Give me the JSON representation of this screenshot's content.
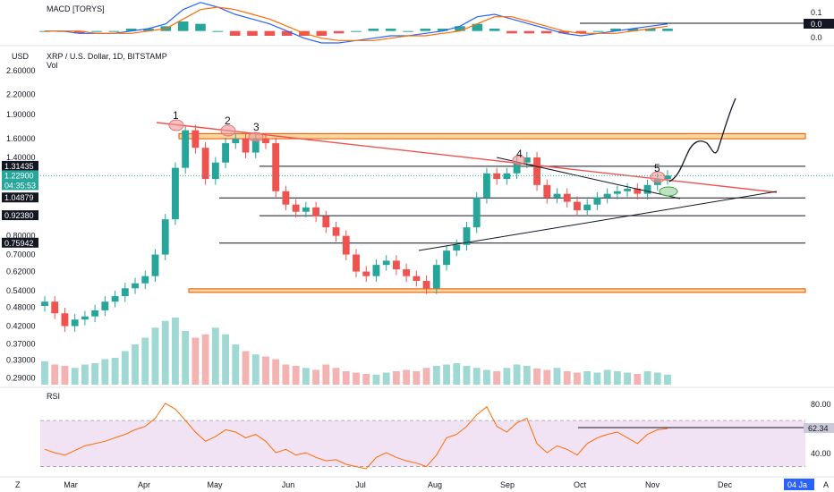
{
  "chart_data": [
    {
      "type": "bar",
      "title": "MACD [TORYS]",
      "ylim": [
        -0.05,
        0.1
      ],
      "y_ticks": [
        "0.1",
        "0.0",
        "0.0"
      ],
      "level_label": "0.0",
      "macd_line": [
        0.0,
        0.0,
        -0.01,
        -0.01,
        -0.01,
        0.0,
        0.01,
        0.03,
        0.09,
        0.12,
        0.1,
        0.07,
        0.05,
        0.03,
        0.0,
        -0.03,
        -0.05,
        -0.05,
        -0.04,
        -0.03,
        -0.02,
        -0.02,
        -0.01,
        0.0,
        0.02,
        0.06,
        0.07,
        0.05,
        0.03,
        0.01,
        -0.01,
        -0.02,
        -0.01,
        0.0,
        0.01,
        0.02,
        0.03
      ],
      "signal_line": [
        0.0,
        0.0,
        0.0,
        -0.01,
        -0.01,
        -0.01,
        0.0,
        0.01,
        0.05,
        0.09,
        0.1,
        0.09,
        0.07,
        0.05,
        0.02,
        -0.01,
        -0.03,
        -0.04,
        -0.04,
        -0.04,
        -0.03,
        -0.02,
        -0.02,
        -0.01,
        0.0,
        0.03,
        0.06,
        0.06,
        0.04,
        0.02,
        0.0,
        -0.01,
        -0.01,
        -0.01,
        0.0,
        0.01,
        0.02
      ],
      "histogram": [
        0.0,
        0.0,
        -0.01,
        0.0,
        0.0,
        0.01,
        0.01,
        0.02,
        0.04,
        0.03,
        0.0,
        -0.02,
        -0.02,
        -0.02,
        -0.02,
        -0.02,
        -0.02,
        -0.01,
        0.0,
        0.01,
        0.01,
        0.0,
        0.01,
        0.01,
        0.02,
        0.03,
        0.01,
        -0.01,
        -0.01,
        -0.01,
        -0.01,
        -0.01,
        0.0,
        0.01,
        0.01,
        0.01,
        0.01
      ]
    },
    {
      "type": "line",
      "title": "XRP / U.S. Dollar, 1D, BITSTAMP",
      "subtitle": "Vol",
      "currency": "USD",
      "yscale": "log",
      "ylim": [
        0.28,
        2.9
      ],
      "y_ticks": [
        2.6,
        2.2,
        1.9,
        1.6,
        1.4,
        1.2,
        1.0,
        0.8,
        0.7,
        0.62,
        0.54,
        0.48,
        0.42,
        0.37,
        0.33,
        0.29
      ],
      "y_tick_labels": [
        "2.60000",
        "2.20000",
        "1.90000",
        "1.60000",
        "1.40000",
        "1.20000",
        "",
        "0.80000",
        "0.70000",
        "0.62000",
        "0.54000",
        "0.48000",
        "0.42000",
        "0.37000",
        "0.33000",
        "0.29000"
      ],
      "price_tags": [
        {
          "label": "1.31435",
          "value": 1.31435,
          "color": "#131722"
        },
        {
          "label": "1.22900",
          "value": 1.229,
          "color": "#26a69a"
        },
        {
          "label": "04:35:53",
          "value": 1.19,
          "color": "#26a69a"
        },
        {
          "label": "1.04879",
          "value": 1.04879,
          "color": "#131722"
        },
        {
          "label": "0.92380",
          "value": 0.9238,
          "color": "#131722"
        },
        {
          "label": "0.75942",
          "value": 0.75942,
          "color": "#131722"
        }
      ],
      "x_labels": [
        "Mar",
        "Apr",
        "May",
        "Jun",
        "Jul",
        "Aug",
        "Sep",
        "Oct",
        "Nov",
        "Dec"
      ],
      "date_badge": "04 Ja",
      "wave_labels": [
        "1",
        "2",
        "3",
        "4",
        "5"
      ],
      "close": [
        0.5,
        0.46,
        0.42,
        0.44,
        0.45,
        0.47,
        0.5,
        0.52,
        0.55,
        0.57,
        0.6,
        0.7,
        0.9,
        1.3,
        1.7,
        1.5,
        1.2,
        1.35,
        1.55,
        1.6,
        1.45,
        1.6,
        1.55,
        1.1,
        1.0,
        0.95,
        0.98,
        0.92,
        0.85,
        0.8,
        0.7,
        0.62,
        0.6,
        0.65,
        0.67,
        0.63,
        0.6,
        0.58,
        0.55,
        0.65,
        0.72,
        0.75,
        0.85,
        1.05,
        1.25,
        1.2,
        1.25,
        1.35,
        1.4,
        1.15,
        1.05,
        1.08,
        1.02,
        0.96,
        1.0,
        1.05,
        1.08,
        1.1,
        1.12,
        1.08,
        1.15,
        1.2,
        1.23
      ],
      "volume": [
        0.35,
        0.3,
        0.28,
        0.25,
        0.3,
        0.32,
        0.38,
        0.4,
        0.5,
        0.6,
        0.7,
        0.85,
        0.95,
        1.0,
        0.8,
        0.7,
        0.75,
        0.85,
        0.75,
        0.6,
        0.5,
        0.45,
        0.42,
        0.38,
        0.3,
        0.28,
        0.25,
        0.22,
        0.3,
        0.25,
        0.2,
        0.18,
        0.16,
        0.15,
        0.18,
        0.2,
        0.22,
        0.2,
        0.25,
        0.28,
        0.3,
        0.32,
        0.28,
        0.25,
        0.22,
        0.2,
        0.25,
        0.3,
        0.28,
        0.24,
        0.22,
        0.25,
        0.2,
        0.18,
        0.2,
        0.18,
        0.22,
        0.2,
        0.18,
        0.16,
        0.2,
        0.18,
        0.15
      ],
      "horizontal_levels": [
        1.31435,
        1.04879,
        0.9238,
        0.75942
      ],
      "supply_zone": [
        1.6,
        1.66
      ],
      "demand_zone": [
        0.535,
        0.548
      ]
    },
    {
      "type": "line",
      "title": "RSI",
      "ylim": [
        25,
        95
      ],
      "y_ticks": [
        80,
        40
      ],
      "y_tick_labels": [
        "80.00",
        "40.00"
      ],
      "band": [
        30,
        70
      ],
      "current": 62.34,
      "current_label": "62.34",
      "values": [
        45,
        42,
        40,
        44,
        48,
        50,
        52,
        55,
        58,
        62,
        65,
        72,
        85,
        80,
        70,
        60,
        52,
        56,
        62,
        60,
        55,
        58,
        52,
        42,
        45,
        40,
        42,
        38,
        35,
        36,
        32,
        30,
        28,
        38,
        42,
        38,
        35,
        33,
        30,
        40,
        55,
        58,
        65,
        75,
        82,
        65,
        60,
        68,
        72,
        50,
        42,
        48,
        45,
        40,
        50,
        55,
        58,
        60,
        55,
        50,
        58,
        62,
        63
      ]
    }
  ],
  "axis": {
    "z_button": "Z",
    "a_button": "A"
  }
}
